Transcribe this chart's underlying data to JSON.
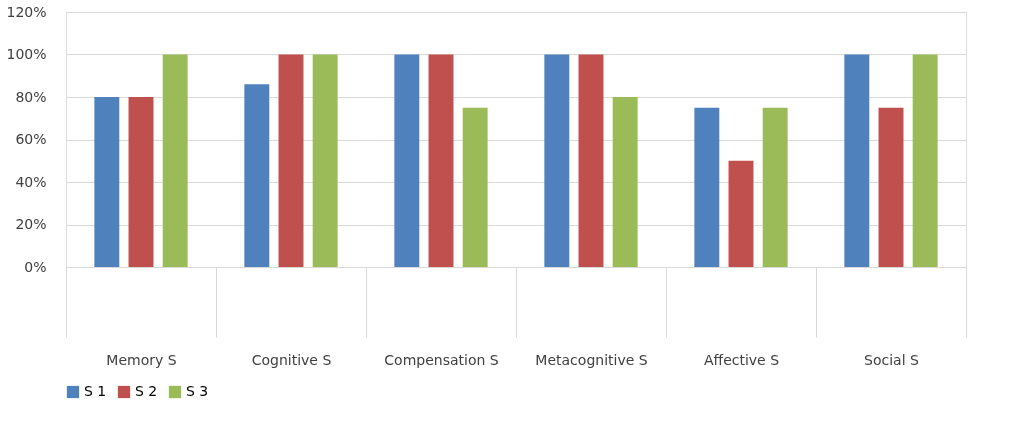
{
  "chart_data": {
    "type": "bar",
    "categories": [
      "Memory S",
      "Cognitive S",
      "Compensation S",
      "Metacognitive S",
      "Affective S",
      "Social S"
    ],
    "series": [
      {
        "name": "S 1",
        "color": "#4f81bd",
        "values": [
          80,
          86,
          100,
          100,
          75,
          100
        ]
      },
      {
        "name": "S 2",
        "color": "#c0504d",
        "values": [
          80,
          100,
          100,
          100,
          50,
          75
        ]
      },
      {
        "name": "S 3",
        "color": "#9bbb59",
        "values": [
          100,
          100,
          75,
          80,
          75,
          100
        ]
      }
    ],
    "ylim": [
      0,
      120
    ],
    "yticks": [
      {
        "value": 0,
        "label": "0%"
      },
      {
        "value": 20,
        "label": "20%"
      },
      {
        "value": 40,
        "label": "40%"
      },
      {
        "value": 60,
        "label": "60%"
      },
      {
        "value": 80,
        "label": "80%"
      },
      {
        "value": 100,
        "label": "100%"
      },
      {
        "value": 120,
        "label": "120%"
      }
    ],
    "grid": "y",
    "legend": "bottom"
  }
}
